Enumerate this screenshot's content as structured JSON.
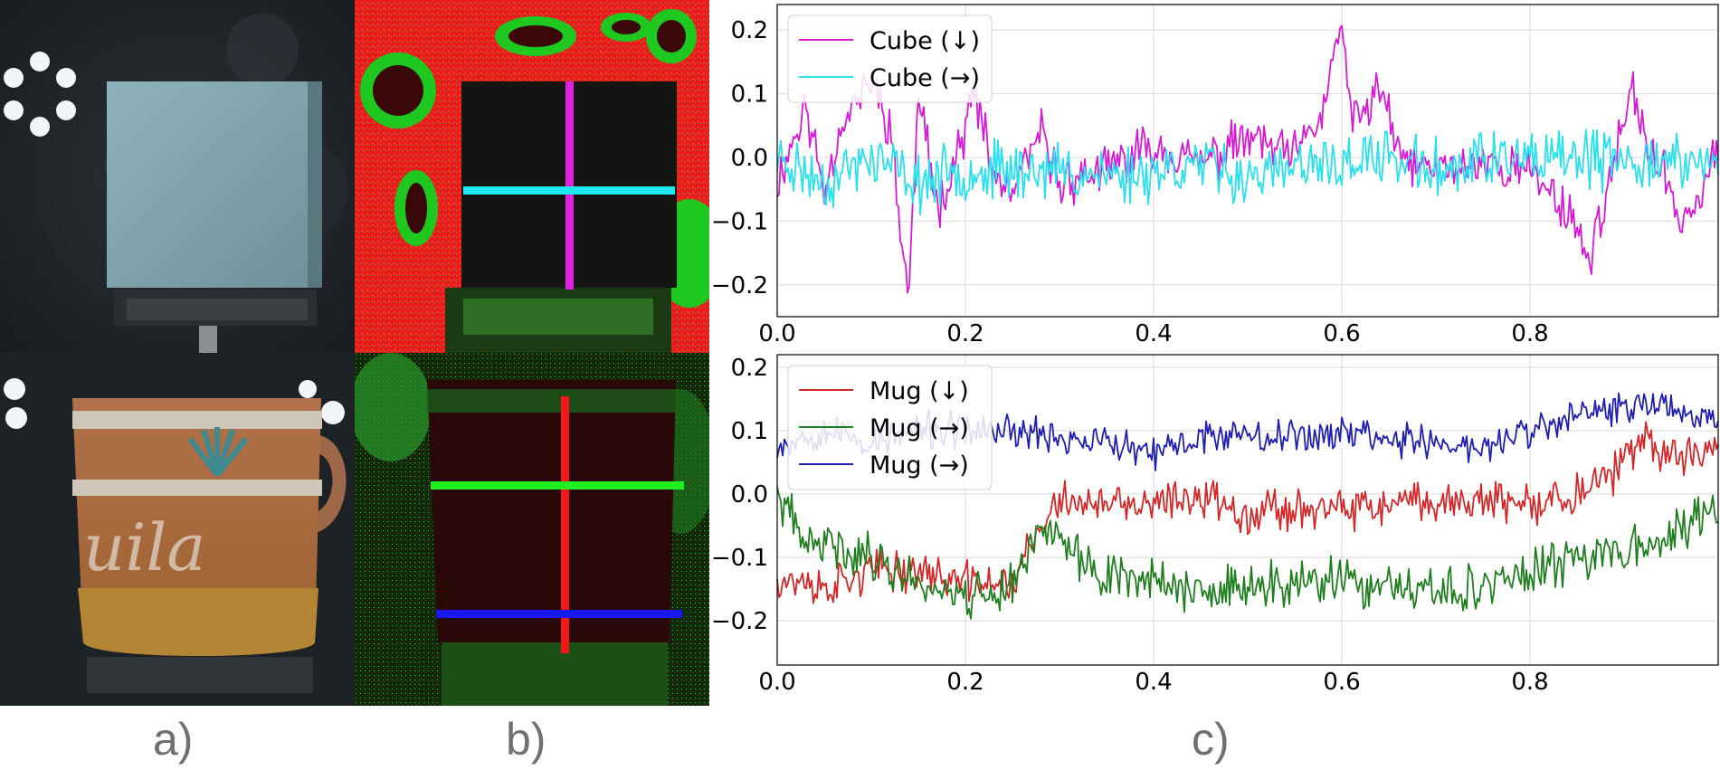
{
  "captions": {
    "a": "a)",
    "b": "b)",
    "c": "c)"
  },
  "colors": {
    "magenta": "#d81ad8",
    "cyan": "#28e0ee",
    "red": "#d62728",
    "green": "#1f7f1f",
    "blue": "#1f1fb4",
    "grid": "#d9d9d9"
  },
  "chart_data": [
    {
      "type": "line",
      "title": "",
      "xlabel": "",
      "ylabel": "",
      "xlim": [
        0.0,
        1.0
      ],
      "ylim": [
        -0.25,
        0.24
      ],
      "xticks": [
        0.0,
        0.2,
        0.4,
        0.6,
        0.8
      ],
      "xtick_labels": [
        "0.0",
        "0.2",
        "0.4",
        "0.6",
        "0.8"
      ],
      "yticks": [
        0.2,
        0.1,
        0.0,
        -0.1,
        -0.2
      ],
      "ytick_labels": [
        "0.2",
        "0.1",
        "0.0",
        "−0.1",
        "−0.2"
      ],
      "grid": true,
      "legend_position": "top-left",
      "series": [
        {
          "name": "Cube (↓)",
          "color": "magenta",
          "anchors": [
            [
              0.0,
              -0.04
            ],
            [
              0.03,
              0.08
            ],
            [
              0.05,
              -0.05
            ],
            [
              0.07,
              0.06
            ],
            [
              0.1,
              0.12
            ],
            [
              0.12,
              0.05
            ],
            [
              0.13,
              -0.1
            ],
            [
              0.14,
              -0.22
            ],
            [
              0.15,
              0.1
            ],
            [
              0.17,
              -0.08
            ],
            [
              0.19,
              0.0
            ],
            [
              0.21,
              0.1
            ],
            [
              0.23,
              -0.03
            ],
            [
              0.25,
              -0.06
            ],
            [
              0.28,
              0.04
            ],
            [
              0.3,
              -0.04
            ],
            [
              0.35,
              -0.02
            ],
            [
              0.4,
              0.02
            ],
            [
              0.45,
              -0.01
            ],
            [
              0.5,
              0.03
            ],
            [
              0.55,
              0.0
            ],
            [
              0.58,
              0.07
            ],
            [
              0.6,
              0.22
            ],
            [
              0.61,
              0.05
            ],
            [
              0.63,
              0.08
            ],
            [
              0.64,
              0.12
            ],
            [
              0.66,
              0.0
            ],
            [
              0.7,
              -0.02
            ],
            [
              0.75,
              -0.01
            ],
            [
              0.8,
              -0.02
            ],
            [
              0.85,
              -0.1
            ],
            [
              0.86,
              -0.17
            ],
            [
              0.87,
              -0.12
            ],
            [
              0.9,
              0.05
            ],
            [
              0.91,
              0.1
            ],
            [
              0.93,
              0.0
            ],
            [
              0.95,
              -0.05
            ],
            [
              0.96,
              -0.1
            ],
            [
              0.98,
              -0.06
            ],
            [
              1.0,
              0.02
            ]
          ],
          "noise": 0.045,
          "seed": 11
        },
        {
          "name": "Cube (→)",
          "color": "cyan",
          "anchors": [
            [
              0.0,
              0.0
            ],
            [
              0.05,
              -0.04
            ],
            [
              0.1,
              0.0
            ],
            [
              0.15,
              -0.04
            ],
            [
              0.2,
              -0.02
            ],
            [
              0.25,
              -0.02
            ],
            [
              0.3,
              -0.02
            ],
            [
              0.35,
              -0.03
            ],
            [
              0.4,
              -0.02
            ],
            [
              0.45,
              -0.01
            ],
            [
              0.5,
              -0.03
            ],
            [
              0.55,
              -0.02
            ],
            [
              0.6,
              -0.01
            ],
            [
              0.65,
              0.0
            ],
            [
              0.7,
              -0.02
            ],
            [
              0.75,
              0.0
            ],
            [
              0.8,
              -0.01
            ],
            [
              0.85,
              0.0
            ],
            [
              0.9,
              -0.01
            ],
            [
              0.95,
              0.0
            ],
            [
              1.0,
              -0.02
            ]
          ],
          "noise": 0.055,
          "seed": 23
        }
      ]
    },
    {
      "type": "line",
      "title": "",
      "xlabel": "",
      "ylabel": "",
      "xlim": [
        0.0,
        1.0
      ],
      "ylim": [
        -0.27,
        0.22
      ],
      "xticks": [
        0.0,
        0.2,
        0.4,
        0.6,
        0.8
      ],
      "xtick_labels": [
        "0.0",
        "0.2",
        "0.4",
        "0.6",
        "0.8"
      ],
      "yticks": [
        0.2,
        0.1,
        0.0,
        -0.1,
        -0.2
      ],
      "ytick_labels": [
        "0.2",
        "0.1",
        "0.0",
        "−0.1",
        "−0.2"
      ],
      "grid": true,
      "legend_position": "top-left",
      "series": [
        {
          "name": "Mug (↓)",
          "color": "red",
          "anchors": [
            [
              0.0,
              -0.13
            ],
            [
              0.05,
              -0.15
            ],
            [
              0.1,
              -0.12
            ],
            [
              0.15,
              -0.12
            ],
            [
              0.2,
              -0.14
            ],
            [
              0.25,
              -0.14
            ],
            [
              0.27,
              -0.08
            ],
            [
              0.3,
              -0.01
            ],
            [
              0.35,
              -0.02
            ],
            [
              0.4,
              -0.02
            ],
            [
              0.45,
              0.0
            ],
            [
              0.5,
              -0.03
            ],
            [
              0.55,
              -0.02
            ],
            [
              0.6,
              -0.03
            ],
            [
              0.65,
              -0.02
            ],
            [
              0.7,
              -0.01
            ],
            [
              0.75,
              -0.01
            ],
            [
              0.8,
              -0.02
            ],
            [
              0.85,
              0.0
            ],
            [
              0.88,
              0.02
            ],
            [
              0.92,
              0.08
            ],
            [
              0.96,
              0.06
            ],
            [
              1.0,
              0.08
            ]
          ],
          "noise": 0.04,
          "seed": 37
        },
        {
          "name": "Mug (→)",
          "color": "green",
          "anchors": [
            [
              0.0,
              0.0
            ],
            [
              0.03,
              -0.08
            ],
            [
              0.05,
              -0.08
            ],
            [
              0.1,
              -0.1
            ],
            [
              0.15,
              -0.14
            ],
            [
              0.2,
              -0.16
            ],
            [
              0.25,
              -0.15
            ],
            [
              0.28,
              -0.04
            ],
            [
              0.3,
              -0.08
            ],
            [
              0.35,
              -0.13
            ],
            [
              0.4,
              -0.13
            ],
            [
              0.45,
              -0.16
            ],
            [
              0.5,
              -0.15
            ],
            [
              0.55,
              -0.14
            ],
            [
              0.6,
              -0.14
            ],
            [
              0.65,
              -0.15
            ],
            [
              0.7,
              -0.16
            ],
            [
              0.75,
              -0.14
            ],
            [
              0.8,
              -0.13
            ],
            [
              0.85,
              -0.1
            ],
            [
              0.9,
              -0.08
            ],
            [
              0.95,
              -0.07
            ],
            [
              1.0,
              -0.02
            ]
          ],
          "noise": 0.045,
          "seed": 41
        },
        {
          "name": "Mug (→)",
          "color": "blue",
          "anchors": [
            [
              0.0,
              0.08
            ],
            [
              0.05,
              0.1
            ],
            [
              0.1,
              0.08
            ],
            [
              0.15,
              0.1
            ],
            [
              0.2,
              0.1
            ],
            [
              0.25,
              0.1
            ],
            [
              0.3,
              0.09
            ],
            [
              0.35,
              0.08
            ],
            [
              0.4,
              0.06
            ],
            [
              0.45,
              0.09
            ],
            [
              0.5,
              0.1
            ],
            [
              0.55,
              0.09
            ],
            [
              0.6,
              0.1
            ],
            [
              0.65,
              0.09
            ],
            [
              0.7,
              0.08
            ],
            [
              0.75,
              0.07
            ],
            [
              0.8,
              0.1
            ],
            [
              0.85,
              0.12
            ],
            [
              0.9,
              0.14
            ],
            [
              0.95,
              0.14
            ],
            [
              1.0,
              0.12
            ]
          ],
          "noise": 0.035,
          "seed": 53
        }
      ]
    }
  ]
}
